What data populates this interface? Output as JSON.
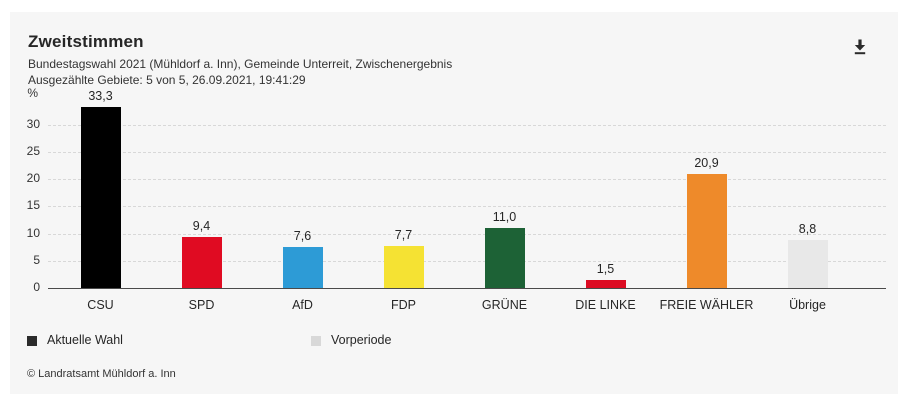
{
  "header": {
    "title": "Zweitstimmen",
    "subtitle_line1": "Bundestagswahl 2021 (Mühldorf a. Inn), Gemeinde Unterreit, Zwischenergebnis",
    "subtitle_line2": "Ausgezählte Gebiete: 5 von 5, 26.09.2021, 19:41:29"
  },
  "chart_data": {
    "type": "bar",
    "title": "Zweitstimmen",
    "unit_label": "%",
    "categories": [
      "CSU",
      "SPD",
      "AfD",
      "FDP",
      "GRÜNE",
      "DIE LINKE",
      "FREIE WÄHLER",
      "Übrige"
    ],
    "values": [
      33.3,
      9.4,
      7.6,
      7.7,
      11.0,
      1.5,
      20.9,
      8.8
    ],
    "value_labels": [
      "33,3",
      "9,4",
      "7,6",
      "7,7",
      "11,0",
      "1,5",
      "20,9",
      "8,8"
    ],
    "bar_colors": [
      "#000000",
      "#e00b22",
      "#2d9bd6",
      "#f5e233",
      "#1d6236",
      "#dc0c23",
      "#ee8a2a",
      "#e8e8e8"
    ],
    "ylim": [
      0,
      35
    ],
    "yticks": [
      0,
      5,
      10,
      15,
      20,
      25,
      30
    ],
    "grid": "dashed-horizontal",
    "legend_position": "bottom",
    "legend": [
      {
        "label": "Aktuelle Wahl",
        "color": "#2b2b2b"
      },
      {
        "label": "Vorperiode",
        "color": "#d8d8d8"
      }
    ]
  },
  "footer": {
    "copyright": "© Landratsamt Mühldorf a. Inn"
  },
  "icons": {
    "download": "download-icon"
  },
  "colors": {
    "card_bg": "#f6f6f6",
    "text_strong": "#262626",
    "text": "#333333",
    "grid": "#d8d8d8",
    "axis": "#4a4a4a",
    "icon": "#2b2b2b"
  }
}
